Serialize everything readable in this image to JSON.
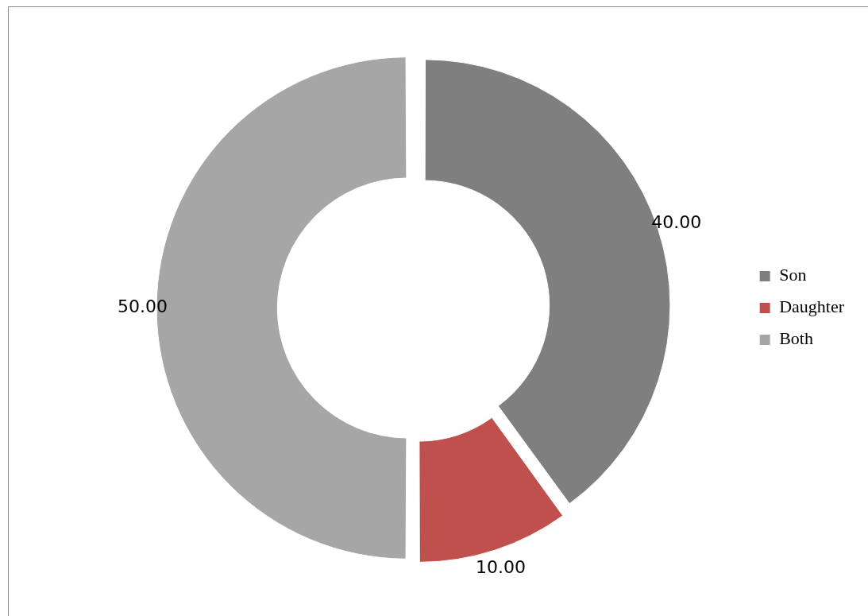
{
  "chart_data": {
    "type": "donut",
    "categories": [
      "Son",
      "Daughter",
      "Both"
    ],
    "values": [
      40,
      10,
      50
    ],
    "colors": [
      "#7f7f7f",
      "#c0504d",
      "#a6a6a6"
    ],
    "value_labels": [
      "40.00",
      "10.00",
      "50.00"
    ],
    "legend": "right"
  }
}
